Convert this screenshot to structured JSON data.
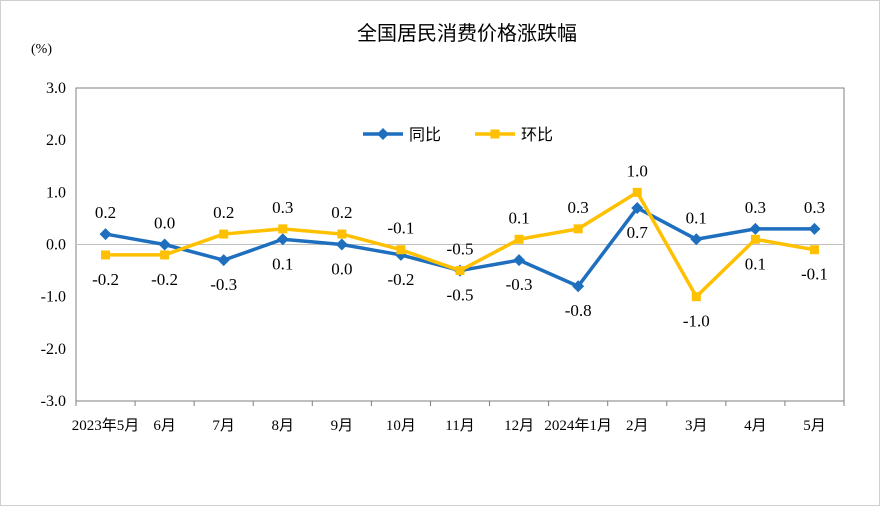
{
  "chart_data": {
    "type": "line",
    "title": "全国居民消费价格涨跌幅",
    "unit": "(%)",
    "categories": [
      "2023年5月",
      "6月",
      "7月",
      "8月",
      "9月",
      "10月",
      "11月",
      "12月",
      "2024年1月",
      "2月",
      "3月",
      "4月",
      "5月"
    ],
    "ylim": [
      -3.0,
      3.0
    ],
    "yticks": [
      "3.0",
      "2.0",
      "1.0",
      "0.0",
      "-1.0",
      "-2.0",
      "-3.0"
    ],
    "series": [
      {
        "name": "同比",
        "color": "#1f6fbf",
        "marker": "diamond",
        "values": [
          0.2,
          0.0,
          -0.3,
          0.1,
          0.0,
          -0.2,
          -0.5,
          -0.3,
          -0.8,
          0.7,
          0.1,
          0.3,
          0.3
        ],
        "labels": [
          "0.2",
          "0.0",
          "-0.3",
          "0.1",
          "0.0",
          "-0.2",
          "-0.5",
          "-0.3",
          "-0.8",
          "0.7",
          "0.1",
          "0.3",
          "0.3"
        ]
      },
      {
        "name": "环比",
        "color": "#ffc000",
        "marker": "square",
        "values": [
          -0.2,
          -0.2,
          0.2,
          0.3,
          0.2,
          -0.1,
          -0.5,
          0.1,
          0.3,
          1.0,
          -1.0,
          0.1,
          -0.1
        ],
        "labels": [
          "-0.2",
          "-0.2",
          "0.2",
          "0.3",
          "0.2",
          "-0.1",
          "-0.5",
          "0.1",
          "0.3",
          "1.0",
          "-1.0",
          "0.1",
          "-0.1"
        ]
      }
    ],
    "legend": "top-center",
    "grid": false
  }
}
